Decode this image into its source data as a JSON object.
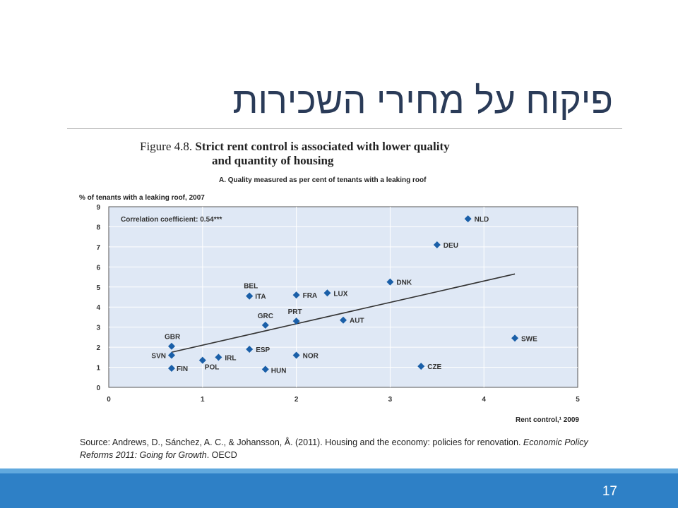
{
  "slide": {
    "title": "פיקוח על מחירי השכירות",
    "page_number": "17",
    "colors": {
      "title": "#2a3b58",
      "footer": "#2e80c6",
      "marker": "#1a5fa8",
      "plot_bg": "#dfe8f5"
    }
  },
  "figure": {
    "label": "Figure 4.8.",
    "heading_line1": "Strict rent control is associated with lower quality",
    "heading_line2": "and quantity of housing",
    "panel_title": "A.  Quality measured as per cent of tenants with a leaking roof"
  },
  "source": {
    "prefix": "Source: Andrews, D., Sánchez, A. C., & Johansson, Å. (2011). Housing and the economy: policies for renovation. ",
    "italic": "Economic Policy Reforms 2011: Going for Growth",
    "suffix": ". OECD"
  },
  "chart_data": {
    "type": "scatter",
    "ylabel": "% of tenants with a leaking roof, 2007",
    "xlabel": "Rent control,¹ 2009",
    "annotation": "Correlation coefficient: 0.54***",
    "xlim": [
      0,
      5
    ],
    "ylim": [
      0,
      9
    ],
    "xticks": [
      0,
      1,
      2,
      3,
      4,
      5
    ],
    "yticks": [
      0,
      1,
      2,
      3,
      4,
      5,
      6,
      7,
      8,
      9
    ],
    "grid": true,
    "points": [
      {
        "label": "NLD",
        "x": 3.83,
        "y": 8.4
      },
      {
        "label": "DEU",
        "x": 3.5,
        "y": 7.1
      },
      {
        "label": "DNK",
        "x": 3.0,
        "y": 5.25
      },
      {
        "label": "BEL",
        "x": 1.5,
        "y": 4.55
      },
      {
        "label": "ITA",
        "x": 1.5,
        "y": 4.55
      },
      {
        "label": "FRA",
        "x": 2.0,
        "y": 4.6
      },
      {
        "label": "LUX",
        "x": 2.33,
        "y": 4.7
      },
      {
        "label": "GRC",
        "x": 1.67,
        "y": 3.1
      },
      {
        "label": "PRT",
        "x": 2.0,
        "y": 3.3
      },
      {
        "label": "AUT",
        "x": 2.5,
        "y": 3.35
      },
      {
        "label": "SWE",
        "x": 4.33,
        "y": 2.45
      },
      {
        "label": "GBR",
        "x": 0.67,
        "y": 2.05
      },
      {
        "label": "SVN",
        "x": 0.67,
        "y": 1.6
      },
      {
        "label": "ESP",
        "x": 1.5,
        "y": 1.9
      },
      {
        "label": "NOR",
        "x": 2.0,
        "y": 1.6
      },
      {
        "label": "IRL",
        "x": 1.17,
        "y": 1.5
      },
      {
        "label": "POL",
        "x": 1.0,
        "y": 1.35
      },
      {
        "label": "FIN",
        "x": 0.67,
        "y": 0.95
      },
      {
        "label": "HUN",
        "x": 1.67,
        "y": 0.9
      },
      {
        "label": "CZE",
        "x": 3.33,
        "y": 1.05
      }
    ],
    "trendline": {
      "x": [
        0.67,
        4.33
      ],
      "y": [
        1.75,
        5.65
      ]
    }
  }
}
